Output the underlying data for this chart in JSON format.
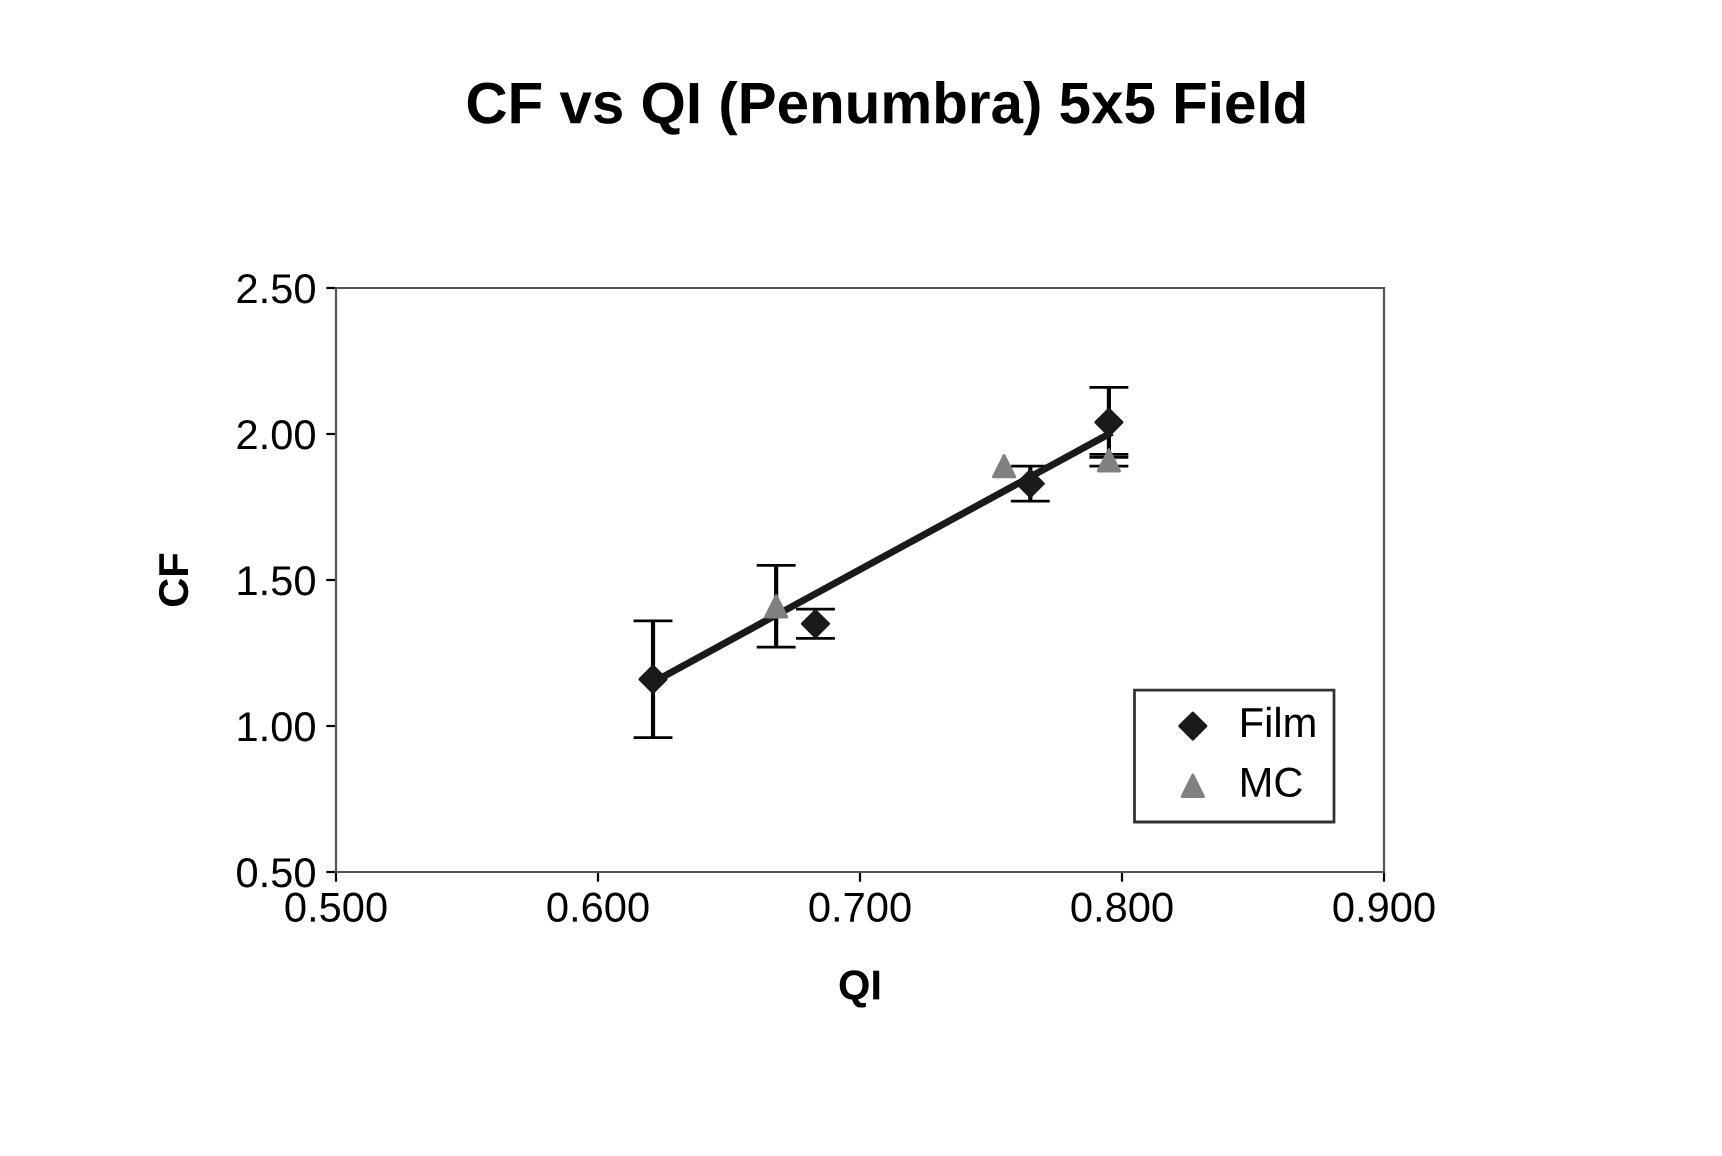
{
  "chart_data": {
    "type": "scatter",
    "title": "CF vs QI (Penumbra) 5x5 Field",
    "xlabel": "QI",
    "ylabel": "CF",
    "xlim": [
      0.5,
      0.9
    ],
    "xticks": [
      {
        "value": 0.5,
        "label": "0.500"
      },
      {
        "value": 0.6,
        "label": "0.600"
      },
      {
        "value": 0.7,
        "label": "0.700"
      },
      {
        "value": 0.8,
        "label": "0.800"
      },
      {
        "value": 0.9,
        "label": "0.900"
      }
    ],
    "ylim": [
      0.5,
      2.5
    ],
    "yticks": [
      {
        "value": 0.5,
        "label": "0.50"
      },
      {
        "value": 1.0,
        "label": "1.00"
      },
      {
        "value": 1.5,
        "label": "1.50"
      },
      {
        "value": 2.0,
        "label": "2.00"
      },
      {
        "value": 2.5,
        "label": "2.50"
      }
    ],
    "grid": false,
    "legend": "bottom right",
    "series": [
      {
        "name": "Film",
        "marker": "diamond",
        "color": "#1a1a1a",
        "x": [
          0.621,
          0.683,
          0.765,
          0.795
        ],
        "values": [
          1.16,
          1.35,
          1.83,
          2.04
        ],
        "errors": [
          0.2,
          0.05,
          0.06,
          0.12
        ]
      },
      {
        "name": "MC",
        "marker": "triangle",
        "color": "#808080",
        "x": [
          0.668,
          0.755,
          0.795
        ],
        "values": [
          1.41,
          1.89,
          1.91
        ],
        "errors": [
          0.14,
          null,
          0.02
        ]
      },
      {
        "type": "line",
        "marker": "none",
        "color": "#1a1a1a",
        "x": [
          0.621,
          0.795
        ],
        "values": [
          1.15,
          2.0
        ]
      }
    ]
  }
}
